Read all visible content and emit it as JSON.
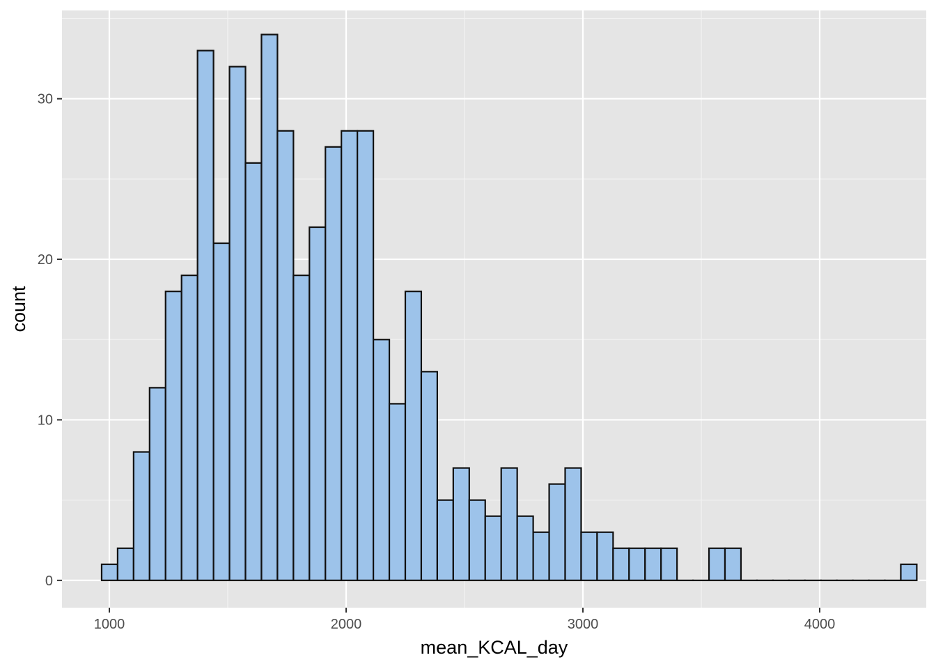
{
  "chart_data": {
    "type": "bar",
    "subtype": "histogram",
    "title": "",
    "xlabel": "mean_KCAL_day",
    "ylabel": "count",
    "bin_width": 67.5,
    "first_bin_start": 967.5,
    "counts": [
      1,
      2,
      8,
      12,
      18,
      19,
      33,
      21,
      32,
      26,
      34,
      28,
      19,
      22,
      27,
      28,
      28,
      15,
      11,
      18,
      13,
      5,
      7,
      5,
      4,
      7,
      4,
      3,
      6,
      7,
      3,
      3,
      2,
      2,
      2,
      2,
      0,
      0,
      2,
      2,
      0,
      0,
      0,
      0,
      0,
      0,
      0,
      0,
      0,
      0,
      1
    ],
    "xlim": [
      800,
      4450
    ],
    "ylim": [
      -1.7,
      35.5
    ],
    "x_ticks": [
      1000,
      2000,
      3000,
      4000
    ],
    "x_tick_labels": [
      "1000",
      "2000",
      "3000",
      "4000"
    ],
    "y_ticks": [
      0,
      10,
      20,
      30
    ],
    "y_tick_labels": [
      "0",
      "10",
      "20",
      "30"
    ],
    "grid": true,
    "legend": "none",
    "colors": {
      "bar_fill": "#9dc3ea",
      "bar_stroke": "#111111",
      "panel_background": "#e5e5e5",
      "major_grid": "#ffffff",
      "minor_grid": "#f2f2f2",
      "tick_mark": "#333333"
    }
  }
}
